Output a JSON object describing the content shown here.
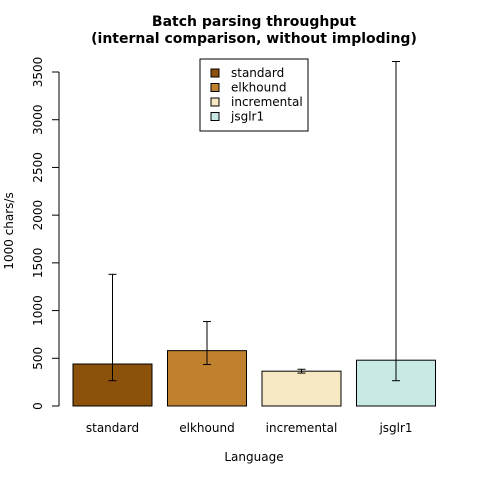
{
  "chart_data": {
    "type": "bar",
    "title": "Batch parsing throughput",
    "subtitle": "(internal comparison, without imploding)",
    "xlabel": "Language",
    "ylabel": "1000 chars/s",
    "categories": [
      "standard",
      "elkhound",
      "incremental",
      "jsglr1"
    ],
    "values": [
      440,
      580,
      365,
      480
    ],
    "error_low": [
      265,
      435,
      345,
      265
    ],
    "error_high": [
      1380,
      885,
      385,
      3610
    ],
    "colors": [
      "#8c510a",
      "#bf812d",
      "#f6e8c3",
      "#c7eae5"
    ],
    "ylim": [
      0,
      3500
    ],
    "yticks": [
      0,
      500,
      1000,
      1500,
      2000,
      2500,
      3000,
      3500
    ],
    "grid": false,
    "legend_position": "top-center",
    "legend": [
      "standard",
      "elkhound",
      "incremental",
      "jsglr1"
    ]
  }
}
